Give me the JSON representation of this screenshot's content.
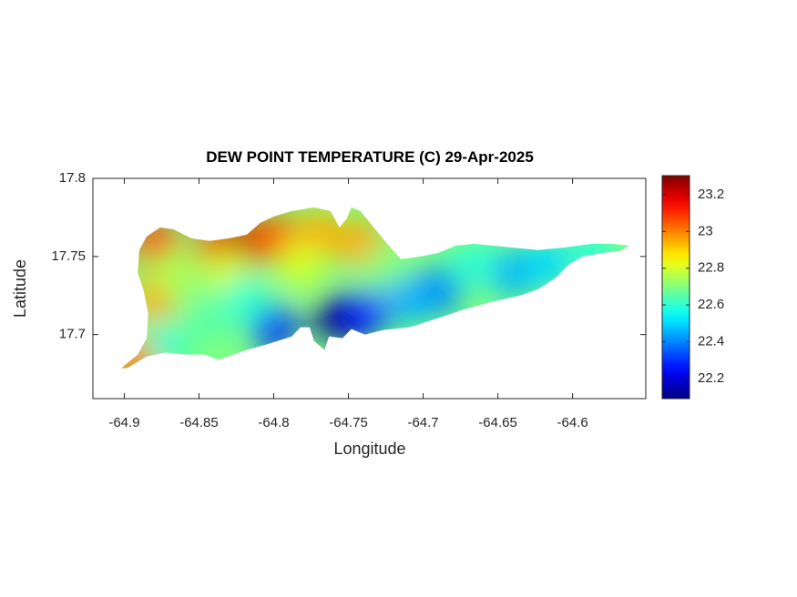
{
  "chart_data": {
    "type": "contour-map",
    "title": "DEW POINT TEMPERATURE (C) 29-Apr-2025",
    "xlabel": "Longitude",
    "ylabel": "Latitude",
    "xlim": [
      -64.921,
      -64.551
    ],
    "ylim": [
      17.659,
      17.8
    ],
    "xticks": [
      -64.9,
      -64.85,
      -64.8,
      -64.75,
      -64.7,
      -64.65,
      -64.6
    ],
    "yticks": [
      17.7,
      17.75,
      17.8
    ],
    "colormap": "jet",
    "clim": [
      22.09,
      23.304
    ],
    "cticks": [
      22.2,
      22.4,
      22.6,
      22.8,
      23,
      23.2
    ],
    "outline": {
      "lon": [
        -64.902,
        -64.891,
        -64.885,
        -64.884,
        -64.887,
        -64.891,
        -64.89,
        -64.885,
        -64.876,
        -64.867,
        -64.855,
        -64.843,
        -64.83,
        -64.818,
        -64.809,
        -64.8,
        -64.788,
        -64.773,
        -64.762,
        -64.756,
        -64.751,
        -64.748,
        -64.742,
        -64.733,
        -64.724,
        -64.715,
        -64.702,
        -64.69,
        -64.678,
        -64.666,
        -64.654,
        -64.641,
        -64.623,
        -64.605,
        -64.587,
        -64.574,
        -64.562,
        -64.568,
        -64.58,
        -64.593,
        -64.602,
        -64.611,
        -64.623,
        -64.635,
        -64.654,
        -64.672,
        -64.69,
        -64.709,
        -64.727,
        -64.739,
        -64.748,
        -64.754,
        -64.763,
        -64.766,
        -64.773,
        -64.776,
        -64.782,
        -64.788,
        -64.803,
        -64.818,
        -64.827,
        -64.837,
        -64.846,
        -64.858,
        -64.873,
        -64.885,
        -64.898
      ],
      "lat": [
        17.6785,
        17.6872,
        17.6977,
        17.7134,
        17.7279,
        17.7395,
        17.7541,
        17.7628,
        17.7686,
        17.7674,
        17.7616,
        17.7599,
        17.7616,
        17.764,
        17.7715,
        17.7756,
        17.7791,
        17.7814,
        17.7791,
        17.7686,
        17.7744,
        17.7814,
        17.7791,
        17.7686,
        17.7581,
        17.7483,
        17.75,
        17.7523,
        17.757,
        17.7581,
        17.757,
        17.7558,
        17.7541,
        17.7558,
        17.7581,
        17.7581,
        17.757,
        17.7535,
        17.7523,
        17.75,
        17.7453,
        17.7366,
        17.7291,
        17.725,
        17.7209,
        17.7163,
        17.7105,
        17.7047,
        17.7029,
        17.7,
        17.7035,
        17.6977,
        17.6988,
        17.6901,
        17.6959,
        17.7047,
        17.7047,
        17.6988,
        17.6942,
        17.6901,
        17.6872,
        17.6837,
        17.6872,
        17.6872,
        17.6884,
        17.686,
        17.6785
      ]
    },
    "samples": {
      "lon": [
        -64.878,
        -64.88,
        -64.836,
        -64.818,
        -64.8,
        -64.77,
        -64.741,
        -64.867,
        -64.83,
        -64.782,
        -64.727,
        -64.8,
        -64.757,
        -64.739,
        -64.69,
        -64.641,
        -64.617,
        -64.587,
        -64.843,
        -64.873,
        -64.894,
        -64.666,
        -64.709,
        -64.818
      ],
      "lat": [
        17.7581,
        17.7233,
        17.757,
        17.7581,
        17.7616,
        17.764,
        17.7581,
        17.7395,
        17.7395,
        17.7453,
        17.7395,
        17.7047,
        17.7105,
        17.7134,
        17.7279,
        17.7395,
        17.7453,
        17.7541,
        17.7105,
        17.693,
        17.6814,
        17.7453,
        17.7221,
        17.7221
      ],
      "values": [
        23.1,
        22.95,
        23.15,
        23.25,
        23.05,
        22.95,
        22.95,
        22.75,
        22.8,
        22.8,
        22.7,
        22.25,
        22.1,
        22.25,
        22.4,
        22.45,
        22.5,
        22.6,
        22.65,
        22.6,
        23.0,
        22.6,
        22.45,
        22.6
      ]
    }
  }
}
